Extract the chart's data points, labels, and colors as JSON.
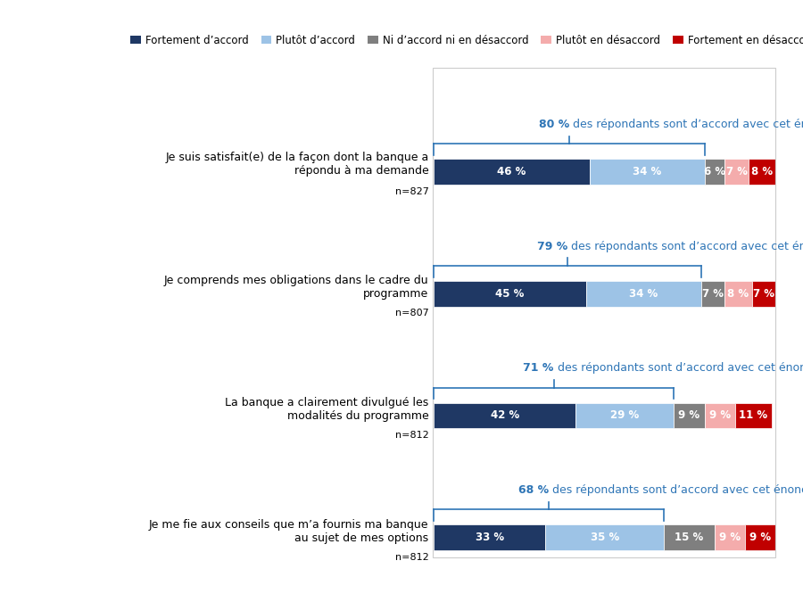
{
  "categories": [
    "Je suis satisfait(e) de la façon dont la banque a\nrépondu à ma demande",
    "Je comprends mes obligations dans le cadre du\nprogramme",
    "La banque a clairement divulgué les\nmodalités du programme",
    "Je me fie aux conseils que m’a fournis ma banque\nau sujet de mes options"
  ],
  "n_labels": [
    "n=827",
    "n=807",
    "n=812",
    "n=812"
  ],
  "agreement_pcts": [
    80,
    79,
    71,
    68
  ],
  "agreement_text": "des répondants sont d’accord avec cet énoncé",
  "segments": [
    [
      46,
      34,
      6,
      7,
      8
    ],
    [
      45,
      34,
      7,
      8,
      7
    ],
    [
      42,
      29,
      9,
      9,
      11
    ],
    [
      33,
      35,
      15,
      9,
      9
    ]
  ],
  "segment_labels": [
    [
      "46 %",
      "34 %",
      "6 %",
      "7 %",
      "8 %"
    ],
    [
      "45 %",
      "34 %",
      "7 %",
      "8 %",
      "7 %"
    ],
    [
      "42 %",
      "29 %",
      "9 %",
      "9 %",
      "11 %"
    ],
    [
      "33 %",
      "35 %",
      "15 %",
      "9 %",
      "9 %"
    ]
  ],
  "colors": [
    "#1F3864",
    "#9DC3E6",
    "#7F7F7F",
    "#F4ACAC",
    "#C00000"
  ],
  "legend_labels": [
    "Fortement d’accord",
    "Plutôt d’accord",
    "Ni d’accord ni en désaccord",
    "Plutôt en désaccord",
    "Fortement en désaccord"
  ],
  "bar_height": 0.5,
  "figsize": [
    9.0,
    6.75
  ],
  "dpi": 100,
  "background_color": "#FFFFFF",
  "bracket_color": "#2E75B6",
  "text_color_blue": "#2E75B6",
  "text_color_black": "#000000"
}
